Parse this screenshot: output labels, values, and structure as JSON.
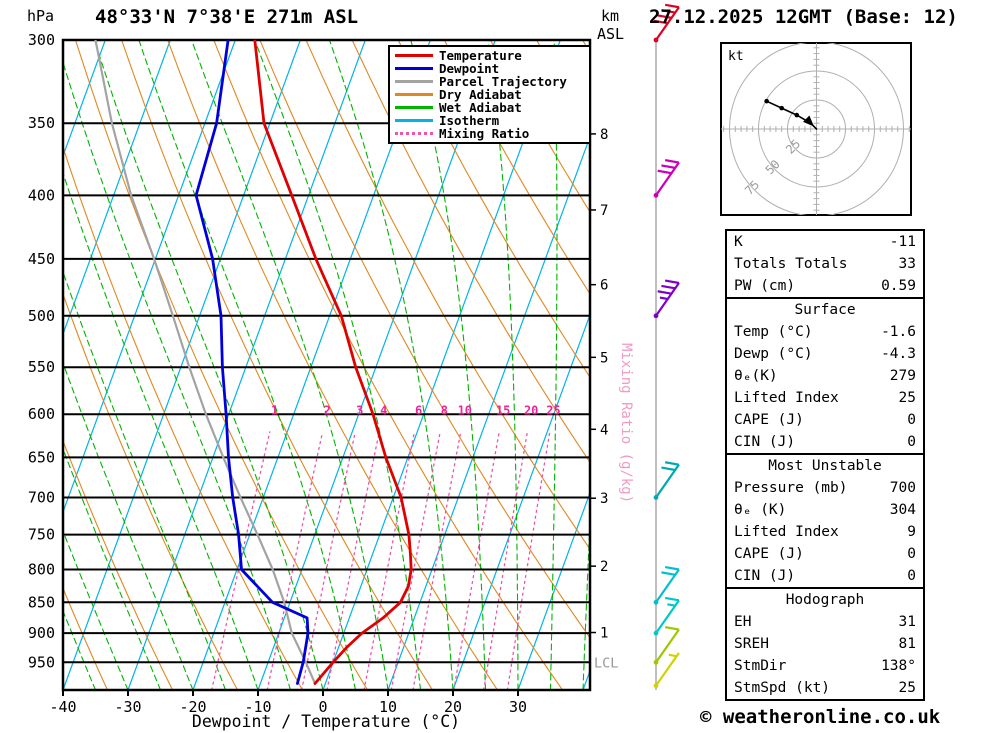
{
  "header": {
    "station": "48°33'N 7°38'E 271m ASL",
    "datetime": "27.12.2025 12GMT (Base: 12)",
    "pressure_unit": "hPa",
    "alt_unit_km": "km",
    "alt_unit_asl": "ASL"
  },
  "footer": {
    "copyright": "© weatheronline.co.uk"
  },
  "legend": {
    "items": [
      {
        "label": "Temperature",
        "color": "#e00000",
        "dash": "solid"
      },
      {
        "label": "Dewpoint",
        "color": "#0000dd",
        "dash": "solid"
      },
      {
        "label": "Parcel Trajectory",
        "color": "#a3a3a3",
        "dash": "solid"
      },
      {
        "label": "Dry Adiabat",
        "color": "#e08820",
        "dash": "solid"
      },
      {
        "label": "Wet Adiabat",
        "color": "#00b400",
        "dash": "solid"
      },
      {
        "label": "Isotherm",
        "color": "#00b4e6",
        "dash": "solid"
      },
      {
        "label": "Mixing Ratio",
        "color": "#ee55aa",
        "dash": "dotted"
      }
    ]
  },
  "panel": {
    "boxes": [
      {
        "title": null,
        "rows": [
          [
            "K",
            "-11"
          ],
          [
            "Totals Totals",
            "33"
          ],
          [
            "PW (cm)",
            "0.59"
          ]
        ]
      },
      {
        "title": "Surface",
        "rows": [
          [
            "Temp (°C)",
            "-1.6"
          ],
          [
            "Dewp (°C)",
            "-4.3"
          ],
          [
            "θₑ(K)",
            "279"
          ],
          [
            "Lifted Index",
            "25"
          ],
          [
            "CAPE (J)",
            "0"
          ],
          [
            "CIN (J)",
            "0"
          ]
        ]
      },
      {
        "title": "Most Unstable",
        "rows": [
          [
            "Pressure (mb)",
            "700"
          ],
          [
            "θₑ (K)",
            "304"
          ],
          [
            "Lifted Index",
            "9"
          ],
          [
            "CAPE (J)",
            "0"
          ],
          [
            "CIN (J)",
            "0"
          ]
        ]
      },
      {
        "title": "Hodograph",
        "rows": [
          [
            "EH",
            "31"
          ],
          [
            "SREH",
            "81"
          ],
          [
            "StmDir",
            "138°"
          ],
          [
            "StmSpd (kt)",
            "25"
          ]
        ]
      }
    ]
  },
  "colors": {
    "temperature": "#e00000",
    "dewpoint": "#0000dd",
    "parcel": "#a3a3a3",
    "dry_adiabat": "#e08820",
    "wet_adiabat": "#00b400",
    "isotherm": "#00b4e6",
    "mixing_ratio": "#ee55aa",
    "mixing_number": "#ee2299",
    "mixing_label": "#f19ac4",
    "axis": "#000000",
    "hodograph_grid": "#b0b0b0",
    "lcl": "#999999"
  },
  "chart_data": {
    "type": "skewt_log_p",
    "title": "48°33'N 7°38'E 271m ASL",
    "datetime": "27.12.2025 12GMT (Base: 12)",
    "xlabel": "Dewpoint / Temperature (°C)",
    "x_ticks_c": [
      -40,
      -30,
      -20,
      -10,
      0,
      10,
      20,
      30
    ],
    "pressure_ticks_hpa": [
      300,
      350,
      400,
      450,
      500,
      550,
      600,
      650,
      700,
      750,
      800,
      850,
      900,
      950
    ],
    "pressure_range_hpa": [
      300,
      1000
    ],
    "km_asl_ticks": [
      {
        "km": 1,
        "p_hpa": 899
      },
      {
        "km": 2,
        "p_hpa": 795
      },
      {
        "km": 3,
        "p_hpa": 701
      },
      {
        "km": 4,
        "p_hpa": 617
      },
      {
        "km": 5,
        "p_hpa": 540
      },
      {
        "km": 6,
        "p_hpa": 472
      },
      {
        "km": 7,
        "p_hpa": 411
      },
      {
        "km": 8,
        "p_hpa": 357
      }
    ],
    "isotherms_c": {
      "min": -110,
      "max": 40,
      "step": 10
    },
    "dry_adiabats_theta_k": {
      "min": 230,
      "max": 450,
      "step": 10
    },
    "wet_adiabats_thetaw_c": {
      "min": -60,
      "max": 45,
      "step": 5
    },
    "mixing_ratio_g_kg": [
      1,
      2,
      3,
      4,
      6,
      8,
      10,
      15,
      20,
      25
    ],
    "mixing_axis_label": "Mixing Ratio (g/kg)",
    "lcl": {
      "label": "LCL",
      "p_hpa": 950
    },
    "sounding": {
      "temperature_p_c": [
        [
          988,
          -1.6
        ],
        [
          950,
          0.0
        ],
        [
          925,
          1.2
        ],
        [
          900,
          2.8
        ],
        [
          875,
          5.2
        ],
        [
          850,
          7.0
        ],
        [
          825,
          7.3
        ],
        [
          800,
          6.8
        ],
        [
          775,
          5.7
        ],
        [
          750,
          4.5
        ],
        [
          700,
          1.2
        ],
        [
          650,
          -3.4
        ],
        [
          600,
          -7.8
        ],
        [
          550,
          -13.1
        ],
        [
          500,
          -18.2
        ],
        [
          450,
          -25.3
        ],
        [
          400,
          -32.6
        ],
        [
          350,
          -40.9
        ],
        [
          300,
          -47.0
        ]
      ],
      "dewpoint_p_c": [
        [
          988,
          -4.3
        ],
        [
          950,
          -4.6
        ],
        [
          900,
          -5.5
        ],
        [
          875,
          -6.5
        ],
        [
          850,
          -12.7
        ],
        [
          800,
          -19.3
        ],
        [
          750,
          -21.7
        ],
        [
          700,
          -24.7
        ],
        [
          650,
          -27.6
        ],
        [
          600,
          -30.4
        ],
        [
          550,
          -33.6
        ],
        [
          500,
          -36.7
        ],
        [
          450,
          -41.2
        ],
        [
          400,
          -47.3
        ],
        [
          350,
          -48.2
        ],
        [
          300,
          -51.1
        ]
      ],
      "parcel_p_c": [
        [
          988,
          -1.6
        ],
        [
          950,
          -4.2
        ],
        [
          900,
          -8.0
        ],
        [
          850,
          -10.9
        ],
        [
          800,
          -14.5
        ],
        [
          750,
          -18.8
        ],
        [
          700,
          -23.5
        ],
        [
          650,
          -28.4
        ],
        [
          600,
          -33.5
        ],
        [
          550,
          -38.7
        ],
        [
          500,
          -44.1
        ],
        [
          450,
          -50.2
        ],
        [
          400,
          -57.3
        ],
        [
          350,
          -64.3
        ],
        [
          300,
          -71.5
        ]
      ]
    },
    "wind_barbs": [
      {
        "p_hpa": 300,
        "speed_kt": 40,
        "color": "#e00022"
      },
      {
        "p_hpa": 400,
        "speed_kt": 30,
        "color": "#cc00bb"
      },
      {
        "p_hpa": 500,
        "speed_kt": 35,
        "color": "#8000c8"
      },
      {
        "p_hpa": 700,
        "speed_kt": 20,
        "color": "#00a8b4"
      },
      {
        "p_hpa": 850,
        "speed_kt": 20,
        "color": "#00c0d0"
      },
      {
        "p_hpa": 900,
        "speed_kt": 15,
        "color": "#00c8c8"
      },
      {
        "p_hpa": 950,
        "speed_kt": 10,
        "color": "#a0c800"
      },
      {
        "p_hpa": 992,
        "speed_kt": 5,
        "color": "#d2d200"
      }
    ],
    "hodograph": {
      "unit_label": "kt",
      "ring_labels": [
        25,
        50,
        75
      ],
      "ring_step_kt": 25,
      "trace_uv_kt": [
        [
          -43,
          24
        ],
        [
          -30,
          18
        ],
        [
          -17,
          12
        ],
        [
          -5,
          5
        ],
        [
          0,
          0
        ]
      ],
      "dot_indices": [
        0,
        1,
        2
      ],
      "storm_dir_deg": 138,
      "storm_speed_kt": 25
    }
  }
}
